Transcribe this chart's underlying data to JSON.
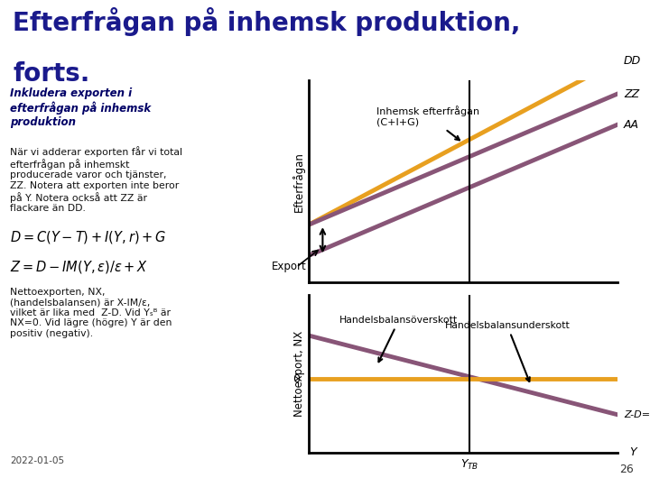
{
  "title_line1": "Efterfrågan på inhemsk produktion,",
  "title_line2": "forts.",
  "title_color": "#1a1a8c",
  "title_fontsize": 20,
  "bg_color": "#ffffff",
  "left_panel_color": "#aaded8",
  "header_bar_color": "#7878aa",
  "left_box_text_bold": "Inkludera exporten i\nefterfrågan på inhemsk\nproduktion",
  "left_box_text_normal": "När vi adderar exporten får vi total\nefterfrågan på inhemskt\nproducerade varor och tjänster,\nZZ. Notera att exporten inte beror\npå Y. Notera också att ZZ är\nflackare än DD.",
  "left_box_text2": "Nettoexporten, NX,\n(handelsbalansen) är X-IM/ε,\nvilket är lika med  Z-D. Vid Yₛᴮ är\nNX=0. Vid lägre (högre) Y är den\npositiv (negativ).",
  "date_text": "2022-01-05",
  "page_number": "26",
  "color_orange": "#e8a020",
  "color_purple": "#885577",
  "top_chart": {
    "ylabel": "Efterfrågan",
    "dd_slope": 0.85,
    "dd_intercept": 0.3,
    "zz_slope": 0.68,
    "zz_intercept": 0.3,
    "aa_slope": 0.68,
    "aa_intercept": 0.14,
    "vertical_line_x": 0.52
  },
  "bottom_chart": {
    "ylabel": "Nettoexport, NX",
    "nx_slope": -0.3,
    "nx_intercept": 0.165,
    "vertical_line_x": 0.52
  }
}
